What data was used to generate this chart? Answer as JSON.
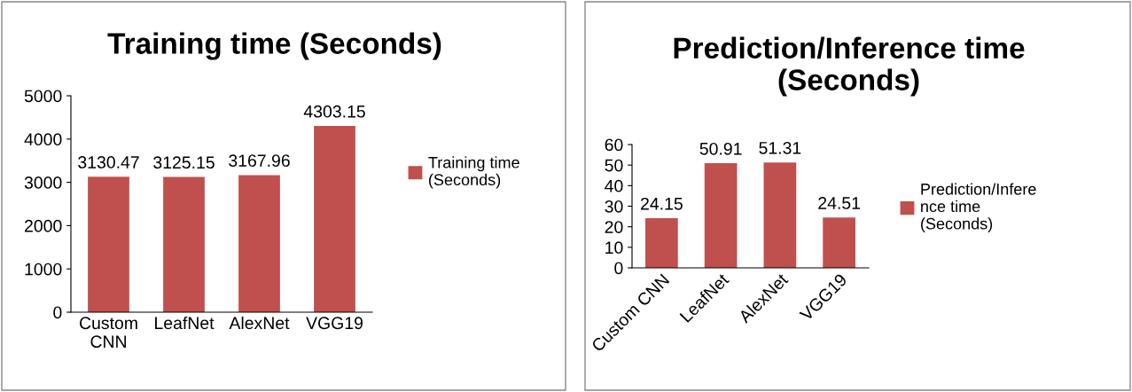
{
  "chart_data": [
    {
      "type": "bar",
      "title": "Training time (Seconds)",
      "categories": [
        "Custom CNN",
        "LeafNet",
        "AlexNet",
        "VGG19"
      ],
      "series": [
        {
          "name": "Training time (Seconds)",
          "color": "#c0504d",
          "values": [
            3130.47,
            3125.15,
            3167.96,
            4303.15
          ]
        }
      ],
      "ylim": [
        0,
        5000
      ],
      "yticks": [
        0,
        1000,
        2000,
        3000,
        4000,
        5000
      ],
      "data_labels": true,
      "legend": "right"
    },
    {
      "type": "bar",
      "title": "Prediction/Inference time (Seconds)",
      "categories": [
        "Custom CNN",
        "LeafNet",
        "AlexNet",
        "VGG19"
      ],
      "series": [
        {
          "name": "Prediction/Inference time (Seconds)",
          "color": "#c0504d",
          "values": [
            24.15,
            50.91,
            51.31,
            24.51
          ]
        }
      ],
      "ylim": [
        0,
        60
      ],
      "yticks": [
        0,
        10,
        20,
        30,
        40,
        50,
        60
      ],
      "data_labels": true,
      "legend": "right"
    }
  ]
}
